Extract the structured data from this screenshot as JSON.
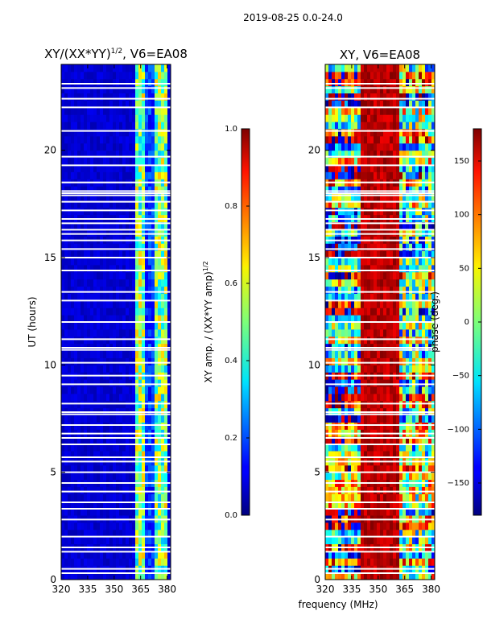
{
  "suptitle": "2019-08-25 0.0-24.0",
  "shared_xlabel": "frequency (MHz)",
  "chart_data": [
    {
      "type": "heatmap",
      "title": "XY/(XX*YY)",
      "title_exponent": "1/2",
      "title_suffix": ", V6=EA08",
      "xlabel": "",
      "ylabel": "UT (hours)",
      "xlim": [
        320,
        382
      ],
      "ylim": [
        0,
        24
      ],
      "xticks": [
        320,
        335,
        350,
        365,
        380
      ],
      "yticks": [
        0,
        5,
        10,
        15,
        20
      ],
      "colormap": "jet",
      "colorbar": {
        "label": "XY amp. / (XX*YY amp)",
        "label_exponent": "1/2",
        "range": [
          0.0,
          1.0
        ],
        "ticks": [
          "0.0",
          "0.2",
          "0.4",
          "0.6",
          "0.8",
          "1.0"
        ]
      },
      "description_values": {
        "background_amplitude": 0.05,
        "high_band_mhz": [
          362,
          380
        ],
        "high_band_amplitude": [
          0.3,
          0.7
        ]
      }
    },
    {
      "type": "heatmap",
      "title": "XY, V6=EA08",
      "xlabel": "frequency (MHz)",
      "ylabel": "",
      "xlim": [
        320,
        382
      ],
      "ylim": [
        0,
        24
      ],
      "xticks": [
        320,
        335,
        350,
        365,
        380
      ],
      "yticks": [
        0,
        5,
        10,
        15,
        20
      ],
      "colormap": "jet",
      "colorbar": {
        "label": "phase (deg.)",
        "range": [
          -180,
          180
        ],
        "ticks": [
          "150",
          "100",
          "50",
          "0",
          "−50",
          "−100",
          "−150"
        ]
      }
    }
  ],
  "flag_gaps_hours": [
    0.3,
    0.5,
    1.3,
    1.5,
    2.0,
    2.8,
    3.3,
    3.6,
    4.1,
    4.5,
    5.0,
    5.5,
    5.7,
    6.3,
    6.6,
    6.8,
    7.2,
    7.7,
    7.8,
    8.2,
    9.1,
    9.5,
    10.1,
    10.7,
    10.8,
    11.2,
    12.0,
    13.0,
    13.4,
    14.4,
    15.0,
    15.4,
    15.8,
    16.1,
    16.3,
    16.6,
    16.8,
    17.2,
    17.6,
    17.9,
    18.0,
    18.1,
    18.5,
    19.3,
    19.7,
    20.9,
    22.0,
    22.4,
    22.9,
    23.1
  ]
}
